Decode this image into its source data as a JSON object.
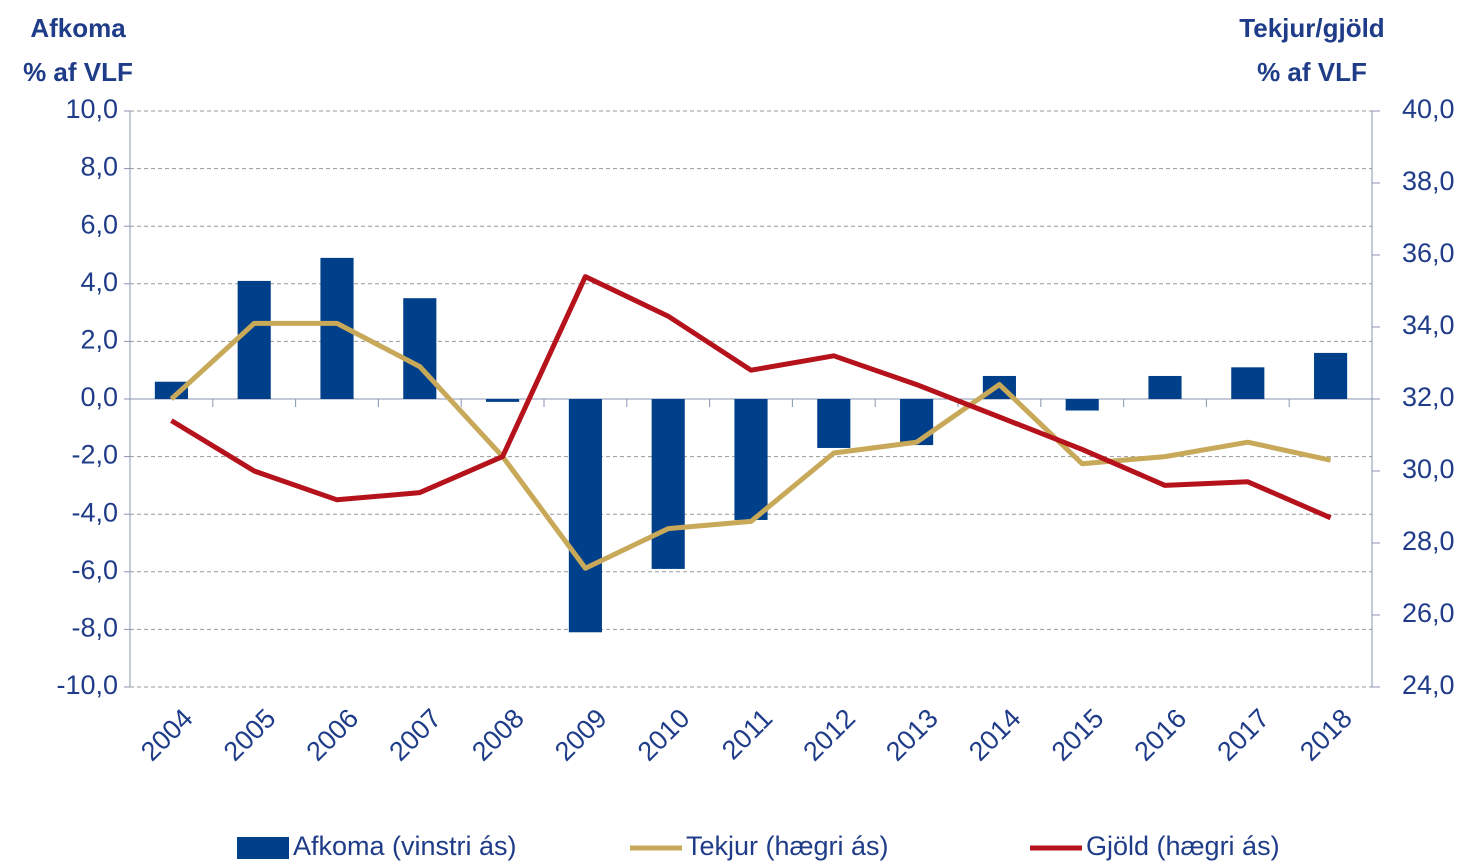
{
  "chart_data": {
    "type": "bar_line",
    "y_label": [
      "Afkoma",
      "% af VLF"
    ],
    "y2_label": [
      "Tekjur/gjöld",
      "% af VLF"
    ],
    "categories": [
      "2004",
      "2005",
      "2006",
      "2007",
      "2008",
      "2009",
      "2010",
      "2011",
      "2012",
      "2013",
      "2014",
      "2015",
      "2016",
      "2017",
      "2018"
    ],
    "series": [
      {
        "name": "Afkoma (vinstri ás)",
        "type": "bar",
        "color": "#003f8a",
        "axis": "y",
        "values": [
          0.6,
          4.1,
          4.9,
          3.5,
          -0.1,
          -8.1,
          -5.9,
          -4.2,
          -1.7,
          -1.6,
          0.8,
          -0.4,
          0.8,
          1.1,
          1.6
        ]
      },
      {
        "name": "Tekjur (hægri ás)",
        "type": "line",
        "color": "#c8a95a",
        "axis": "y2",
        "values": [
          32.0,
          34.1,
          34.1,
          32.9,
          30.4,
          27.3,
          28.4,
          28.6,
          30.5,
          30.8,
          32.4,
          30.2,
          30.4,
          30.8,
          30.3
        ]
      },
      {
        "name": "Gjöld (hægri ás)",
        "type": "line",
        "color": "#b5121b",
        "axis": "y2",
        "values": [
          31.4,
          30.0,
          29.2,
          29.4,
          30.4,
          35.4,
          34.3,
          32.8,
          33.2,
          32.4,
          31.5,
          30.6,
          29.6,
          29.7,
          28.7
        ]
      }
    ],
    "ylim": [
      -10,
      10
    ],
    "yticks": [
      {
        "value": -10,
        "label": "-10,0"
      },
      {
        "value": -8,
        "label": "-8,0"
      },
      {
        "value": -6,
        "label": "-6,0"
      },
      {
        "value": -4,
        "label": "-4,0"
      },
      {
        "value": -2,
        "label": "-2,0"
      },
      {
        "value": 0,
        "label": "0,0"
      },
      {
        "value": 2,
        "label": "2,0"
      },
      {
        "value": 4,
        "label": "4,0"
      },
      {
        "value": 6,
        "label": "6,0"
      },
      {
        "value": 8,
        "label": "8,0"
      },
      {
        "value": 10,
        "label": "10,0"
      }
    ],
    "y2lim": [
      24,
      40
    ],
    "y2ticks": [
      {
        "value": 24,
        "label": "24,0"
      },
      {
        "value": 26,
        "label": "26,0"
      },
      {
        "value": 28,
        "label": "28,0"
      },
      {
        "value": 30,
        "label": "30,0"
      },
      {
        "value": 32,
        "label": "32,0"
      },
      {
        "value": 34,
        "label": "34,0"
      },
      {
        "value": 36,
        "label": "36,0"
      },
      {
        "value": 38,
        "label": "38,0"
      },
      {
        "value": 40,
        "label": "40,0"
      }
    ],
    "grid": true,
    "legend": "bottom"
  }
}
